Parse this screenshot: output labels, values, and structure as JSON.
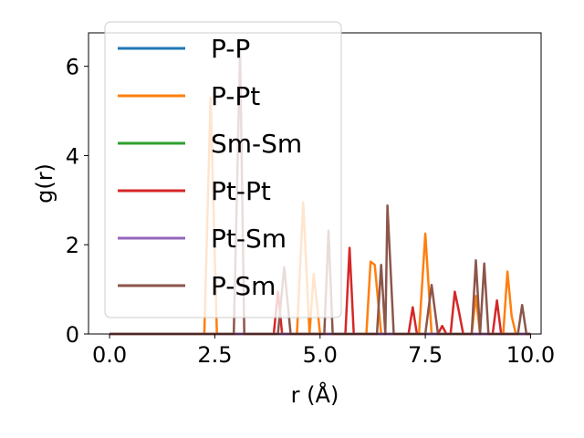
{
  "chart_data": {
    "type": "line",
    "xlabel": "r (Å)",
    "ylabel": "g(r)",
    "xlim": [
      -0.5,
      10.25
    ],
    "ylim": [
      0,
      6.75
    ],
    "xticks": [
      "0.0",
      "2.5",
      "5.0",
      "7.5",
      "10.0"
    ],
    "xtick_values": [
      0,
      2.5,
      5,
      7.5,
      10
    ],
    "yticks": [
      "0",
      "2",
      "4",
      "6"
    ],
    "ytick_values": [
      0,
      2,
      4,
      6
    ],
    "grid": false,
    "legend_position": "upper-left",
    "series": [
      {
        "name": "P-P",
        "color": "#1f77b4",
        "x": [
          0,
          10
        ],
        "y": [
          0,
          0
        ]
      },
      {
        "name": "P-Pt",
        "color": "#ff7f0e",
        "x": [
          0,
          2.25,
          2.4,
          2.55,
          4.45,
          4.6,
          4.75,
          4.85,
          5.0,
          6.1,
          6.2,
          6.3,
          6.45,
          7.35,
          7.5,
          7.65,
          8.6,
          8.7,
          8.8,
          9.35,
          9.45,
          9.55,
          9.65,
          10
        ],
        "y": [
          0,
          0,
          5.3,
          0,
          0,
          2.95,
          0,
          1.35,
          0,
          0,
          1.62,
          1.55,
          0,
          0,
          2.25,
          0,
          0,
          0.85,
          0,
          0,
          1.4,
          0.4,
          0,
          0
        ]
      },
      {
        "name": "Sm-Sm",
        "color": "#2ca02c",
        "x": [
          0,
          10
        ],
        "y": [
          0,
          0
        ]
      },
      {
        "name": "Pt-Pt",
        "color": "#d62728",
        "x": [
          0,
          3.9,
          4.0,
          4.1,
          5.6,
          5.7,
          5.8,
          7.1,
          7.2,
          7.3,
          7.8,
          7.9,
          8.0,
          8.1,
          8.2,
          8.3,
          8.4,
          9.1,
          9.2,
          9.3,
          10
        ],
        "y": [
          0,
          0,
          0.95,
          0,
          0,
          1.93,
          0,
          0,
          0.6,
          0,
          0,
          0.18,
          0,
          0,
          0.95,
          0.5,
          0,
          0,
          0.75,
          0,
          0
        ]
      },
      {
        "name": "Pt-Sm",
        "color": "#9467bd",
        "x": [
          0,
          10
        ],
        "y": [
          0,
          0
        ]
      },
      {
        "name": "P-Sm",
        "color": "#8c564b",
        "x": [
          0,
          2.95,
          3.1,
          3.2,
          4.0,
          4.15,
          4.3,
          5.1,
          5.2,
          5.3,
          6.35,
          6.45,
          6.55,
          6.6,
          6.75,
          7.5,
          7.65,
          7.8,
          8.6,
          8.7,
          8.8,
          8.9,
          9.0,
          9.7,
          9.8,
          9.9,
          10
        ],
        "y": [
          0,
          0,
          6.35,
          0,
          0,
          1.5,
          0,
          0,
          2.32,
          0,
          0,
          1.55,
          0,
          2.88,
          0,
          0,
          1.1,
          0,
          0,
          1.65,
          0,
          1.58,
          0,
          0,
          0.65,
          0,
          0
        ]
      }
    ]
  }
}
